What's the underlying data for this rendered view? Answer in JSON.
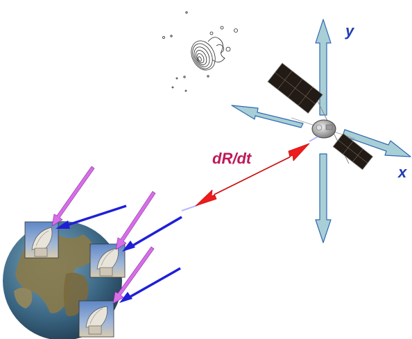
{
  "labels": {
    "x_axis": "x",
    "y_axis": "y",
    "range_rate": "dR/dt"
  },
  "colors": {
    "axis_arrow_fill": "#a9cfd6",
    "axis_arrow_stroke": "#2e67b3",
    "axis_label": "#1f3bb4",
    "range_rate_arrow": "#ee1c1c",
    "range_rate_label": "#c0185a",
    "downlink_arrow": "#1f1fd8",
    "uplink_arrow": "#d96de8",
    "earth_ocean": "#3d6f8e",
    "earth_land": "#8a7a4a",
    "solar_panel": "#221a14",
    "contour": "#222222"
  },
  "icons": {
    "satellite": "satellite-icon",
    "earth": "earth-globe-icon",
    "ground_station": "radio-dish-icon",
    "radio_source": "radio-source-contour-icon"
  }
}
